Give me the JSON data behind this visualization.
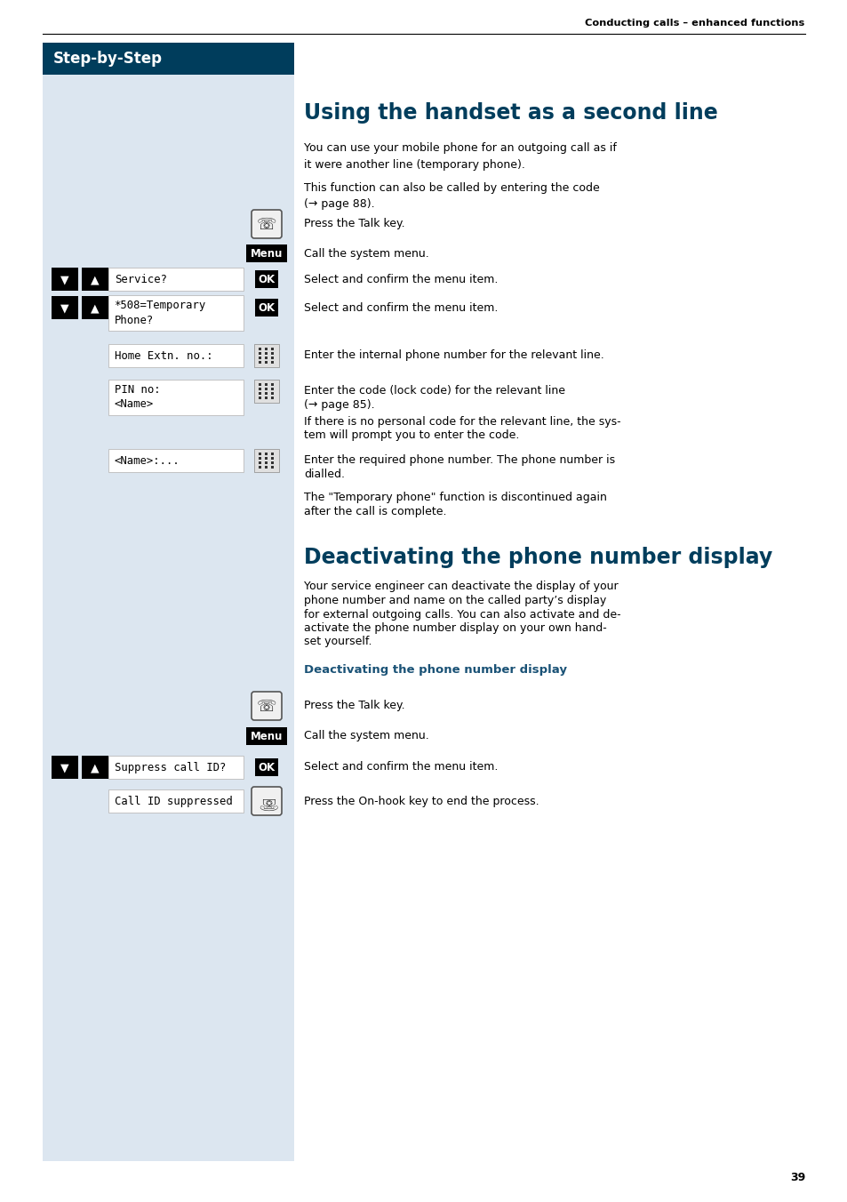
{
  "page_bg": "#ffffff",
  "left_panel_bg": "#dce6f0",
  "header_text": "Conducting calls – enhanced functions",
  "step_by_step_bg": "#003d5c",
  "step_by_step_text": "Step-by-Step",
  "title1": "Using the handset as a second line",
  "title1_color": "#003d5c",
  "title2": "Deactivating the phone number display",
  "title2_color": "#003d5c",
  "subtitle2": "Deactivating the phone number display",
  "subtitle2_color": "#1a5276",
  "page_number": "39",
  "para1": "You can use your mobile phone for an outgoing call as if\nit were another line (temporary phone).",
  "para2": "This function can also be called by entering the code\n(→ page 88).",
  "press_talk1": "Press the Talk key.",
  "call_system1": "Call the system menu.",
  "select_confirm1": "Select and confirm the menu item.",
  "select_confirm2": "Select and confirm the menu item.",
  "enter_internal": "Enter the internal phone number for the relevant line.",
  "enter_code_line1": "Enter the code (lock code) for the relevant line",
  "enter_code_line2": "(→ page 85).",
  "enter_code_line3": "If there is no personal code for the relevant line, the sys-",
  "enter_code_line4": "tem will prompt you to enter the code.",
  "enter_required_line1": "Enter the required phone number. The phone number is",
  "enter_required_line2": "dialled.",
  "temp_discontinued_line1": "The \"Temporary phone\" function is discontinued again",
  "temp_discontinued_line2": "after the call is complete.",
  "para_deact_line1": "Your service engineer can deactivate the display of your",
  "para_deact_line2": "phone number and name on the called party’s display",
  "para_deact_line3": "for external outgoing calls. You can also activate and de-",
  "para_deact_line4": "activate the phone number display on your own hand-",
  "para_deact_line5": "set yourself.",
  "press_talk2": "Press the Talk key.",
  "call_system2": "Call the system menu.",
  "select_confirm3": "Select and confirm the menu item.",
  "press_onhook": "Press the On-hook key to end the process."
}
